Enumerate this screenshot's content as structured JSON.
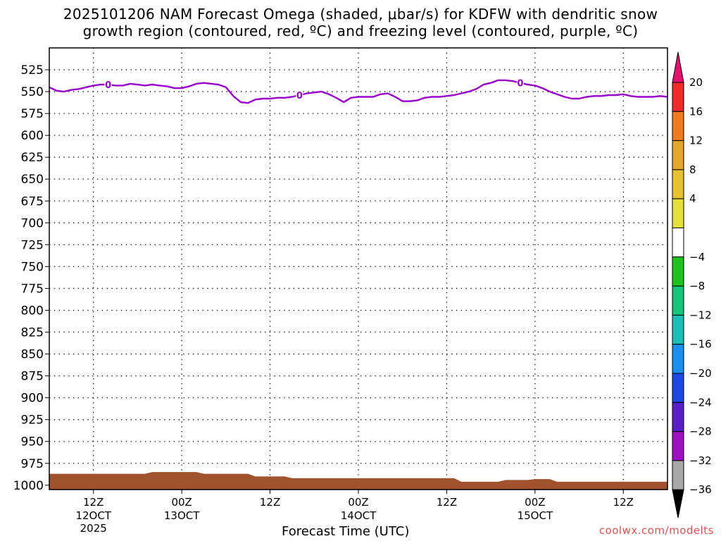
{
  "chart_data": {
    "type": "time-height cross-section",
    "title_line1": "2025101206 NAM Forecast Omega (shaded, μbar/s) for KDFW with dendritic snow",
    "title_line2": "growth region (contoured, red, ºC) and freezing level (contoured, purple, ºC)",
    "xlabel": "Forecast Time (UTC)",
    "ylabel": "",
    "y_scale": "pressure (hPa), inverted",
    "y_ticks": [
      525,
      550,
      575,
      600,
      625,
      650,
      675,
      700,
      725,
      750,
      775,
      800,
      825,
      850,
      875,
      900,
      925,
      950,
      975,
      1000
    ],
    "x_range_hours": [
      6,
      90
    ],
    "x_ticks": [
      {
        "hour": 12,
        "label": "12Z",
        "date": "12OCT",
        "year": "2025"
      },
      {
        "hour": 24,
        "label": "00Z",
        "date": "13OCT",
        "year": ""
      },
      {
        "hour": 36,
        "label": "12Z",
        "date": "",
        "year": ""
      },
      {
        "hour": 48,
        "label": "00Z",
        "date": "14OCT",
        "year": ""
      },
      {
        "hour": 60,
        "label": "12Z",
        "date": "",
        "year": ""
      },
      {
        "hour": 72,
        "label": "00Z",
        "date": "15OCT",
        "year": ""
      },
      {
        "hour": 84,
        "label": "12Z",
        "date": "",
        "year": ""
      }
    ],
    "grid": true,
    "freezing_level": {
      "label": "0",
      "color": "#9900cc",
      "hours": [
        6,
        7,
        8,
        9,
        10,
        11,
        12,
        13,
        14,
        15,
        16,
        17,
        18,
        19,
        20,
        21,
        22,
        23,
        24,
        25,
        26,
        27,
        28,
        29,
        30,
        31,
        32,
        33,
        34,
        35,
        36,
        37,
        38,
        39,
        40,
        41,
        42,
        43,
        44,
        45,
        46,
        47,
        48,
        49,
        50,
        51,
        52,
        53,
        54,
        55,
        56,
        57,
        58,
        59,
        60,
        61,
        62,
        63,
        64,
        65,
        66,
        67,
        68,
        69,
        70,
        71,
        72,
        73,
        74,
        75,
        76,
        77,
        78,
        79,
        80,
        81,
        82,
        83,
        84,
        85,
        86,
        87,
        88,
        89,
        90
      ],
      "pressure": [
        545,
        549,
        550,
        548,
        547,
        545,
        543,
        542,
        542,
        543,
        543,
        541,
        542,
        543,
        542,
        543,
        544,
        546,
        546,
        544,
        541,
        540,
        541,
        542,
        545,
        555,
        562,
        563,
        559,
        558,
        558,
        557,
        557,
        556,
        554,
        552,
        551,
        550,
        553,
        557,
        562,
        557,
        556,
        556,
        556,
        553,
        552,
        556,
        561,
        561,
        560,
        557,
        556,
        556,
        555,
        554,
        552,
        550,
        547,
        542,
        540,
        537,
        537,
        538,
        540,
        542,
        543,
        546,
        550,
        553,
        556,
        558,
        558,
        556,
        555,
        555,
        554,
        554,
        553,
        555,
        556,
        556,
        556,
        555,
        556
      ],
      "label_hours": [
        14,
        40,
        70
      ]
    },
    "terrain_surface": {
      "color": "#a0522d",
      "hours": [
        6,
        19,
        20,
        26,
        27,
        33,
        34,
        38,
        39,
        61,
        62,
        67,
        68,
        71,
        72,
        74,
        75,
        90
      ],
      "pressure": [
        987,
        987,
        985,
        985,
        987,
        987,
        990,
        990,
        992,
        992,
        996,
        996,
        994,
        994,
        993,
        993,
        996,
        996
      ]
    },
    "colorbar": {
      "units": "μbar/s",
      "levels": [
        "20",
        "16",
        "12",
        "8",
        "4",
        "-4",
        "-8",
        "-12",
        "-16",
        "-20",
        "-24",
        "-28",
        "-32",
        "-36"
      ],
      "colors": [
        "#e8106e",
        "#f22a2a",
        "#ee7c1e",
        "#e5a62e",
        "#e6c232",
        "#e6e03a",
        "#ffffff",
        "#1ec41e",
        "#18c47a",
        "#1ebfb8",
        "#1a90f0",
        "#1e48e6",
        "#5a1ec8",
        "#9e10c0",
        "#a8a8a8",
        "#000000"
      ]
    }
  },
  "credit": "coolwx.com/modelts"
}
